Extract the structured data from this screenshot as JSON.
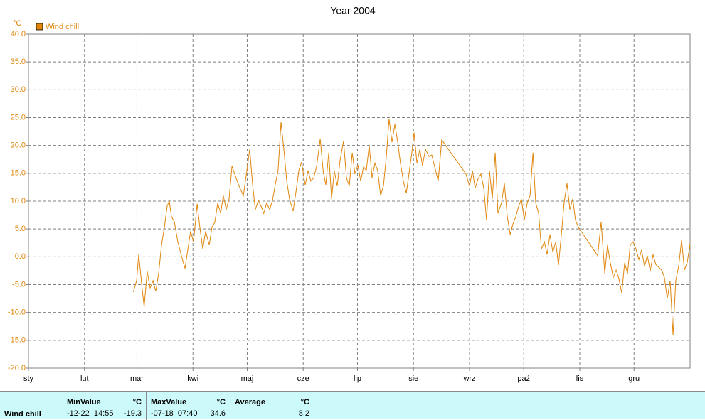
{
  "chart_data": {
    "type": "line",
    "title": "Year 2004",
    "y_unit": "°C",
    "xlim": [
      0,
      366
    ],
    "ylim": [
      -20,
      40
    ],
    "xticks": [
      {
        "value": 0,
        "label": "sty"
      },
      {
        "value": 31,
        "label": "lut"
      },
      {
        "value": 60,
        "label": "mar"
      },
      {
        "value": 91,
        "label": "kwi"
      },
      {
        "value": 121,
        "label": "maj"
      },
      {
        "value": 152,
        "label": "cze"
      },
      {
        "value": 182,
        "label": "lip"
      },
      {
        "value": 213,
        "label": "sie"
      },
      {
        "value": 244,
        "label": "wrz"
      },
      {
        "value": 274,
        "label": "paź"
      },
      {
        "value": 305,
        "label": "lis"
      },
      {
        "value": 335,
        "label": "gru"
      }
    ],
    "yticks": [
      {
        "value": -20,
        "label": "-20.0"
      },
      {
        "value": -15,
        "label": "-15.0"
      },
      {
        "value": -10,
        "label": "-10.0"
      },
      {
        "value": -5,
        "label": "-5.0"
      },
      {
        "value": 0,
        "label": "0.0"
      },
      {
        "value": 5,
        "label": "5.0"
      },
      {
        "value": 10,
        "label": "10.0"
      },
      {
        "value": 15,
        "label": "15.0"
      },
      {
        "value": 20,
        "label": "20.0"
      },
      {
        "value": 25,
        "label": "25.0"
      },
      {
        "value": 30,
        "label": "30.0"
      },
      {
        "value": 35,
        "label": "35.0"
      },
      {
        "value": 40,
        "label": "40.0"
      }
    ],
    "grid": true,
    "legend": "top-left",
    "series": [
      {
        "name": "Wind chill",
        "color": "#e0860b",
        "x": [
          58,
          59.8,
          61,
          62.6,
          64,
          65.7,
          67.3,
          68.9,
          70.4,
          72,
          73.6,
          75.2,
          76.7,
          77.9,
          79.1,
          80.7,
          82.6,
          84.6,
          86.6,
          88.2,
          89.7,
          91.3,
          93.3,
          94.8,
          96.4,
          98,
          100,
          101.5,
          103.1,
          104.7,
          106.3,
          107.8,
          109.4,
          111,
          112.6,
          114.5,
          116.5,
          118.9,
          120.8,
          122.4,
          124,
          125.5,
          127.1,
          128.7,
          130.2,
          131.8,
          133.4,
          135,
          136.5,
          138.1,
          139.7,
          141.3,
          142.9,
          144.4,
          146.4,
          148,
          149.6,
          151.1,
          153.1,
          154.7,
          156.2,
          157.8,
          159.4,
          161.4,
          163,
          164.5,
          166.1,
          167.7,
          169.2,
          170.8,
          172.4,
          174.3,
          175.9,
          177.5,
          179.1,
          180.6,
          182.2,
          183.8,
          185.4,
          186.9,
          188.5,
          190.1,
          191.7,
          193.2,
          194.8,
          196.4,
          198,
          199.5,
          201.1,
          202.7,
          204.3,
          205.8,
          207.4,
          209,
          210.5,
          212.1,
          213.3,
          214.9,
          216.5,
          218,
          219.6,
          221.6,
          223.1,
          226.7,
          228.6,
          242,
          244,
          245.6,
          247.1,
          248.7,
          250.3,
          251.9,
          253.4,
          255,
          256.6,
          258.2,
          259.7,
          261.7,
          263.3,
          264.9,
          266.5,
          268,
          269.6,
          271.2,
          272.7,
          274.3,
          275.9,
          277.5,
          279.1,
          280.6,
          282.2,
          283.8,
          285.4,
          286.9,
          288.5,
          290.1,
          291.7,
          293.2,
          294.8,
          296.3,
          297.9,
          299.5,
          301.1,
          302.6,
          304.2,
          314.9,
          316.8,
          318.8,
          320.3,
          321.9,
          323.5,
          325.1,
          326.6,
          328.2,
          329.8,
          331.4,
          332.9,
          334.5,
          336.1,
          337.7,
          339.2,
          340.8,
          342.4,
          344,
          345.5,
          347.1,
          350.3,
          351.8,
          353.4,
          355,
          356.6,
          358.1,
          359.7,
          361.3,
          362.9,
          364.4,
          366
        ],
        "values": [
          -6.3,
          -4.3,
          0.4,
          -4.9,
          -9.0,
          -2.6,
          -5.6,
          -4.3,
          -6.2,
          -3.0,
          2.1,
          5.3,
          9.1,
          10.0,
          7.2,
          6.3,
          2.7,
          0.2,
          -2.1,
          1.4,
          4.6,
          2.7,
          9.5,
          5.3,
          1.4,
          4.6,
          2.1,
          5.3,
          6.2,
          9.7,
          7.8,
          11.0,
          8.5,
          10.4,
          16.3,
          14.5,
          12.7,
          11.0,
          15.5,
          19.3,
          12.9,
          8.5,
          10.1,
          9.1,
          7.8,
          9.7,
          8.5,
          10.1,
          12.9,
          15.5,
          24.2,
          19.3,
          13.6,
          10.4,
          8.2,
          11.7,
          15.5,
          17.0,
          12.9,
          15.5,
          13.6,
          14.2,
          16.2,
          21.2,
          15.5,
          12.9,
          18.7,
          10.4,
          15.5,
          12.7,
          17.4,
          20.8,
          14.2,
          12.7,
          18.7,
          14.9,
          16.5,
          13.6,
          16.2,
          15.5,
          20.0,
          14.2,
          16.8,
          15.5,
          11.0,
          12.7,
          18.1,
          24.8,
          20.6,
          23.8,
          20.6,
          16.8,
          13.6,
          11.4,
          14.9,
          18.7,
          22.3,
          16.8,
          19.3,
          16.4,
          19.3,
          18.0,
          18.3,
          13.6,
          21.0,
          14.9,
          12.7,
          15.5,
          12.3,
          14.0,
          14.9,
          12.3,
          6.6,
          15.5,
          10.4,
          18.7,
          7.8,
          9.7,
          13.2,
          7.2,
          4.0,
          5.9,
          7.2,
          9.1,
          10.4,
          6.6,
          9.7,
          11.0,
          18.7,
          9.7,
          7.8,
          1.4,
          2.7,
          0.4,
          4.0,
          0.8,
          2.7,
          -1.5,
          4.0,
          9.7,
          13.2,
          8.5,
          10.4,
          6.6,
          5.3,
          0.2,
          6.3,
          -3.0,
          2.1,
          -1.1,
          -3.7,
          -2.4,
          -3.9,
          -6.5,
          -1.1,
          -3.0,
          2.1,
          2.7,
          1.4,
          -0.5,
          1.2,
          -1.7,
          0.2,
          -2.6,
          0.4,
          -1.4,
          -2.4,
          -3.7,
          -7.5,
          -4.3,
          -14.1,
          -4.3,
          -1.7,
          3.0,
          -2.4,
          -1.1,
          2.3
        ]
      }
    ]
  },
  "table": {
    "row_label": "Wind chill",
    "columns": [
      {
        "title": "MinValue",
        "unit": "°C",
        "time": "-12-22  14:55",
        "value": "-19.3"
      },
      {
        "title": "MaxValue",
        "unit": "°C",
        "time": "-07-18  07:40",
        "value": "34.6"
      },
      {
        "title": "Average",
        "unit": "°C",
        "value": "8.2"
      }
    ]
  }
}
